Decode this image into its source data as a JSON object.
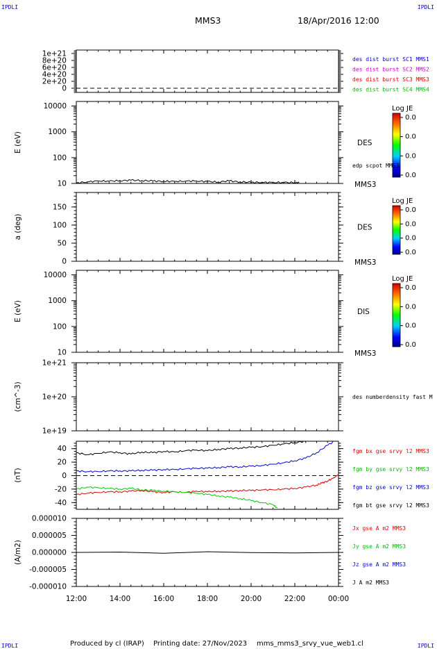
{
  "header": {
    "corner_label": "IPDLI",
    "spacecraft": "MMS3",
    "datetime": "18/Apr/2016 12:00"
  },
  "footer": {
    "produced_by": "Produced by cl (IRAP)",
    "printing_date": "Printing date: 27/Nov/2023",
    "product": "mms_mms3_srvy_vue_web1.cl"
  },
  "chart_data": [
    {
      "type": "line",
      "ylabel": "",
      "ylim": [
        -1.2e+20,
        1.1e+21
      ],
      "yticks": [
        0,
        2e+20,
        4e+20,
        6e+20,
        8e+20,
        1e+21
      ],
      "ytick_labels": [
        "0",
        "2e+20",
        "4e+20",
        "6e+20",
        "8e+20",
        "1e+21"
      ],
      "dashed_zero": true,
      "series": [],
      "right_labels": [
        {
          "text": "des dist burst SC1 MMS1",
          "color": "#0000dd"
        },
        {
          "text": "des dist burst SC2 MMS2",
          "color": "#cc00cc"
        },
        {
          "text": "des dist burst SC3 MMS3",
          "color": "#dd0000"
        },
        {
          "text": "des dist burst SC4 MMS4",
          "color": "#00bb00"
        }
      ]
    },
    {
      "type": "heatmap",
      "ylabel": "E (eV)",
      "yscale": "log",
      "ylim": [
        10,
        15000
      ],
      "yticks": [
        10,
        100,
        1000,
        10000
      ],
      "ytick_labels": [
        "10",
        "100",
        "1000",
        "10000"
      ],
      "instrument": "DES",
      "spacecraft_tag": "MMS3",
      "colorbar": {
        "title": "Log JE",
        "labels": [
          "0.0",
          "0.0",
          "0.0",
          "0.0"
        ]
      },
      "overlay_label": "edp scpot MMS3",
      "series": [
        {
          "color": "#000000",
          "x": [
            0,
            0.5,
            1,
            1.5,
            2,
            2.5,
            3,
            3.5,
            4,
            4.5,
            5,
            5.5,
            6,
            6.5,
            7,
            7.5,
            8,
            8.5,
            9,
            9.5,
            10,
            10.2
          ],
          "y": [
            10.4,
            11.5,
            12.5,
            12.3,
            12.8,
            13.3,
            13.0,
            12.4,
            12.1,
            12.0,
            12.3,
            12.5,
            11.8,
            11.4,
            12.5,
            11.5,
            11.0,
            11.0,
            10.9,
            10.9,
            10.8,
            10.7
          ]
        }
      ]
    },
    {
      "type": "heatmap",
      "ylabel": "a (deg)",
      "ylim": [
        0,
        190
      ],
      "yticks": [
        0,
        50,
        100,
        150
      ],
      "ytick_labels": [
        "0",
        "50",
        "100",
        "150"
      ],
      "instrument": "DES",
      "spacecraft_tag": "MMS3",
      "colorbar": {
        "title": "Log JE",
        "labels": [
          "0.0",
          "0.0",
          "0.0",
          "0.0"
        ]
      },
      "series": []
    },
    {
      "type": "heatmap",
      "ylabel": "E (eV)",
      "yscale": "log",
      "ylim": [
        10,
        15000
      ],
      "yticks": [
        10,
        100,
        1000,
        10000
      ],
      "ytick_labels": [
        "10",
        "100",
        "1000",
        "10000"
      ],
      "instrument": "DIS",
      "spacecraft_tag": "MMS3",
      "colorbar": {
        "title": "Log JE",
        "labels": [
          "0.0",
          "0.0",
          "0.0",
          "0.0"
        ]
      },
      "series": []
    },
    {
      "type": "line",
      "ylabel": "(cm^-3)",
      "yscale": "log",
      "ylim": [
        1e+19,
        1e+21
      ],
      "yticks": [
        1e+19,
        1e+20,
        1e+21
      ],
      "ytick_labels": [
        "1e+19",
        "1e+20",
        "1e+21"
      ],
      "series": [],
      "right_labels": [
        {
          "text": "des numberdensity fast M",
          "color": "#000000"
        }
      ]
    },
    {
      "type": "line",
      "ylabel": "(nT)",
      "ylim": [
        -50,
        51
      ],
      "yticks": [
        -40,
        -20,
        0,
        20,
        40
      ],
      "ytick_labels": [
        "-40",
        "-20",
        "0",
        "20",
        "40"
      ],
      "dashed_zero": true,
      "series": [
        {
          "color": "#000000",
          "x": [
            0,
            0.5,
            1,
            1.5,
            2,
            2.5,
            3,
            3.5,
            4,
            4.5,
            5,
            5.5,
            6,
            6.5,
            7,
            7.5,
            8,
            8.5,
            9,
            9.5,
            10,
            10.5,
            11,
            11.5,
            12
          ],
          "y": [
            34,
            31,
            33,
            35,
            34,
            32,
            35,
            34,
            36,
            35,
            37,
            38,
            37,
            39,
            40,
            41,
            42,
            43,
            45,
            47,
            49,
            51,
            53,
            56,
            60
          ]
        },
        {
          "color": "#0000dd",
          "x": [
            0,
            0.5,
            1,
            1.5,
            2,
            2.5,
            3,
            3.5,
            4,
            4.5,
            5,
            5.5,
            6,
            6.5,
            7,
            7.5,
            8,
            8.5,
            9,
            9.5,
            10,
            10.5,
            11,
            11.5,
            12
          ],
          "y": [
            7,
            6,
            6,
            7,
            7,
            7,
            8,
            8,
            9,
            9,
            10,
            11,
            11,
            12,
            13,
            13,
            14,
            15,
            17,
            19,
            22,
            26,
            34,
            45,
            55
          ]
        },
        {
          "color": "#dd0000",
          "x": [
            0,
            0.5,
            1,
            1.5,
            2,
            2.5,
            3,
            3.5,
            4,
            4.5,
            5,
            5.5,
            6,
            6.5,
            7,
            7.5,
            8,
            8.5,
            9,
            9.5,
            10,
            10.5,
            11,
            11.25,
            11.5,
            11.75,
            12
          ],
          "y": [
            -28,
            -26,
            -25,
            -24,
            -24,
            -23,
            -22,
            -24,
            -25,
            -24,
            -25,
            -23,
            -24,
            -23,
            -23,
            -22,
            -22,
            -21,
            -21,
            -20,
            -19,
            -17,
            -14,
            -11,
            -8,
            -4,
            2
          ]
        },
        {
          "color": "#00cc00",
          "x": [
            0,
            0.5,
            1,
            1.5,
            2,
            2.5,
            3,
            3.5,
            4,
            4.5,
            5,
            5.5,
            6,
            6.5,
            7,
            7.5,
            8,
            8.5,
            9,
            9.2
          ],
          "y": [
            -20,
            -17,
            -18,
            -19,
            -20,
            -19,
            -21,
            -22,
            -23,
            -24,
            -25,
            -26,
            -28,
            -30,
            -32,
            -34,
            -37,
            -40,
            -43,
            -48
          ]
        }
      ],
      "right_labels": [
        {
          "text": "fgm bx gse srvy l2 MMS3",
          "color": "#dd0000"
        },
        {
          "text": "fgm by gse srvy l2 MMS3",
          "color": "#00bb00"
        },
        {
          "text": "fgm bz gse srvy l2 MMS3",
          "color": "#0000dd"
        },
        {
          "text": "fgm bt gse srvy l2 MMS3",
          "color": "#000000"
        }
      ]
    },
    {
      "type": "line",
      "ylabel": "(A/m2)",
      "ylim": [
        -1e-05,
        1e-05
      ],
      "yticks": [
        -1e-05,
        -5e-06,
        0,
        5e-06,
        1e-05
      ],
      "ytick_labels": [
        "-0.000010",
        "-0.000005",
        "0.000000",
        "0.000005",
        "0.000010"
      ],
      "series": [
        {
          "color": "#000000",
          "x": [
            0,
            12
          ],
          "y": [
            0,
            0
          ]
        }
      ],
      "right_labels": [
        {
          "text": "Jx gse A m2 MMS3",
          "color": "#dd0000"
        },
        {
          "text": "Jy gse A m2 MMS3",
          "color": "#00bb00"
        },
        {
          "text": "Jz gse A m2 MMS3",
          "color": "#0000dd"
        },
        {
          "text": "J A m2 MMS3",
          "color": "#000000"
        }
      ]
    }
  ],
  "time_axis": {
    "range_hours": [
      0,
      12
    ],
    "ticks": [
      0,
      2,
      4,
      6,
      8,
      10,
      12
    ],
    "tick_labels": [
      "12:00",
      "14:00",
      "16:00",
      "18:00",
      "20:00",
      "22:00",
      "00:00"
    ]
  }
}
